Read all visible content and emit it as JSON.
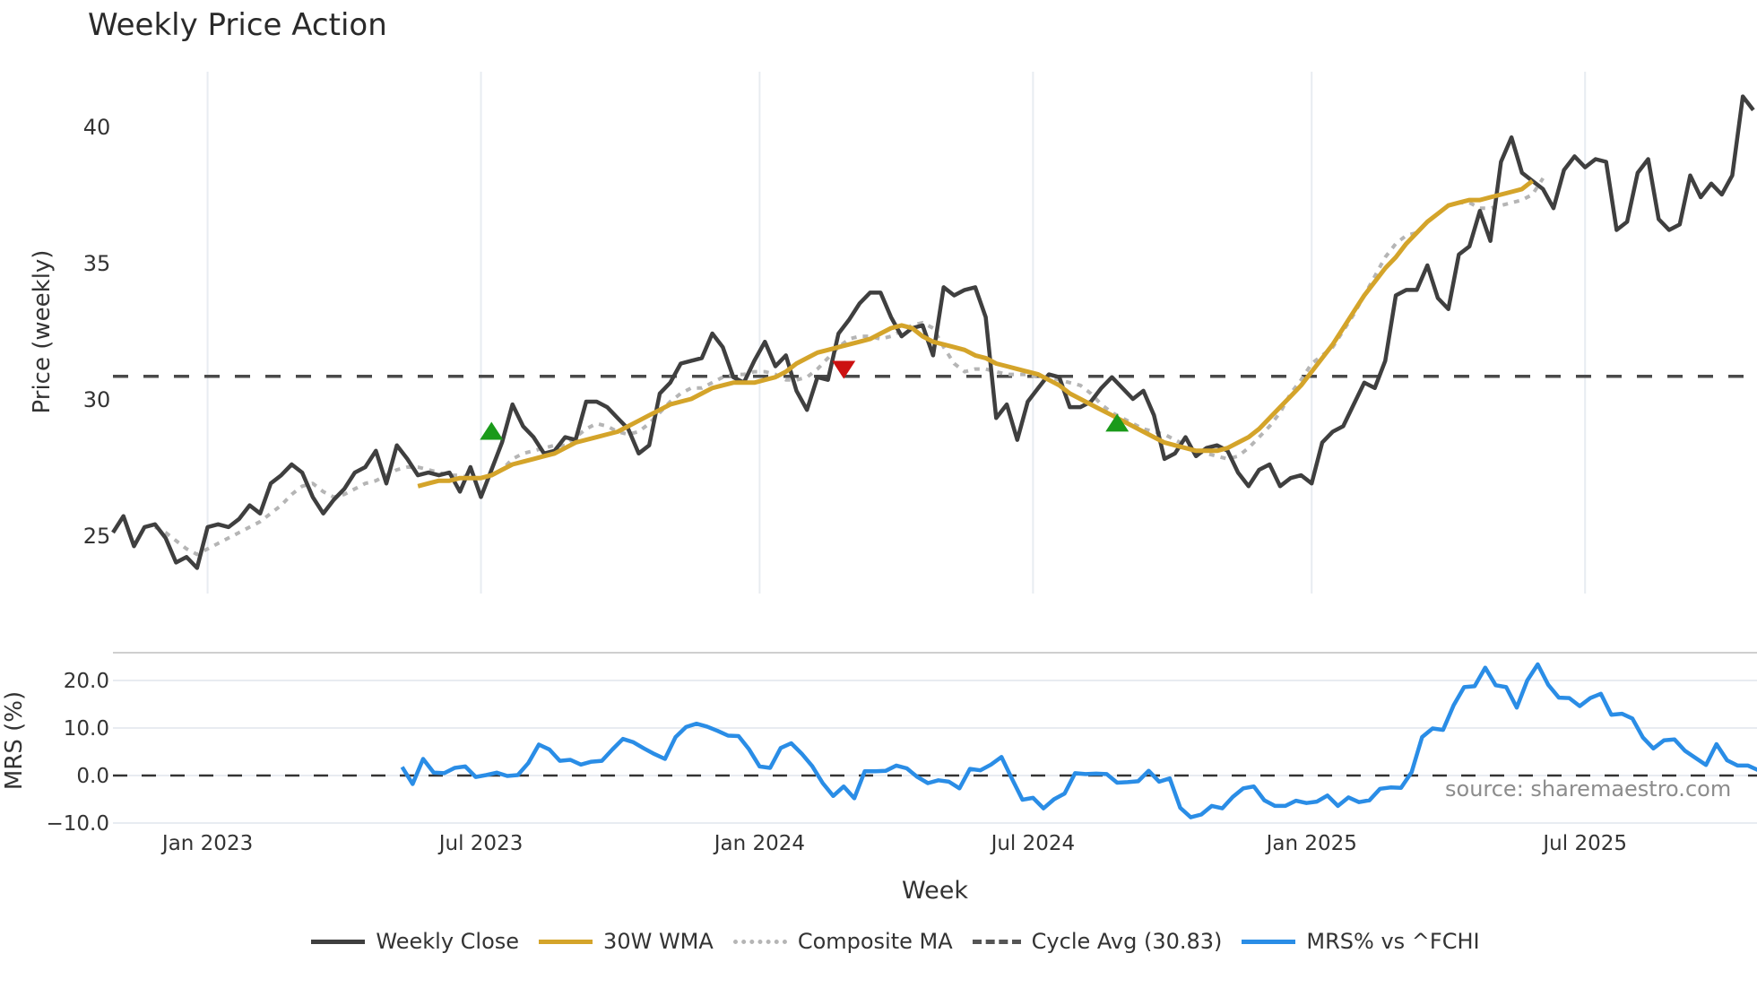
{
  "title": "Weekly Price Action",
  "source_text": "source: sharemaestro.com",
  "legend": [
    {
      "key": "close",
      "label": "Weekly Close",
      "color": "#3f3f3f"
    },
    {
      "key": "wma",
      "label": "30W WMA",
      "color": "#d4a42a"
    },
    {
      "key": "composite",
      "label": "Composite MA",
      "color": "#b5b5b5"
    },
    {
      "key": "cycle",
      "label": "Cycle Avg (30.83)",
      "color": "#555555"
    },
    {
      "key": "mrs",
      "label": "MRS% vs ^FCHI",
      "color": "#2a8de6"
    }
  ],
  "colors": {
    "close": "#3f3f3f",
    "wma": "#d4a42a",
    "composite": "#b5b5b5",
    "cycle": "#555555",
    "mrs": "#2a8de6",
    "buy_marker": "#1a9a1a",
    "sell_marker": "#cc1111",
    "grid": "#e8ecf1"
  },
  "chart_data": [
    {
      "type": "line",
      "title": "Weekly Price Action",
      "xlabel": "",
      "ylabel": "Price (weekly)",
      "ylim": [
        22.8,
        42.2
      ],
      "yticks": [
        25,
        30,
        35,
        40
      ],
      "xticks": [
        {
          "label": "Jan 2023",
          "week": 9
        },
        {
          "label": "Jul 2023",
          "week": 35
        },
        {
          "label": "Jan 2024",
          "week": 61.5
        },
        {
          "label": "Jul 2024",
          "week": 87.5
        },
        {
          "label": "Jan 2025",
          "week": 114
        },
        {
          "label": "Jul 2025",
          "week": 140
        }
      ],
      "grid": "vertical",
      "hline": {
        "label": "Cycle Avg",
        "value": 30.83
      },
      "series": [
        {
          "name": "Weekly Close",
          "start_week": 0,
          "values": [
            25.1,
            25.7,
            24.6,
            25.3,
            25.4,
            24.9,
            24.0,
            24.2,
            23.8,
            25.3,
            25.4,
            25.3,
            25.6,
            26.1,
            25.8,
            26.9,
            27.2,
            27.6,
            27.3,
            26.4,
            25.8,
            26.3,
            26.7,
            27.3,
            27.5,
            28.1,
            26.9,
            28.3,
            27.8,
            27.2,
            27.3,
            27.2,
            27.3,
            26.6,
            27.5,
            26.4,
            27.4,
            28.4,
            29.8,
            29.0,
            28.6,
            28.0,
            28.1,
            28.6,
            28.5,
            29.9,
            29.9,
            29.7,
            29.3,
            28.9,
            28.0,
            28.3,
            30.2,
            30.6,
            31.3,
            31.4,
            31.5,
            32.4,
            31.9,
            30.8,
            30.6,
            31.4,
            32.1,
            31.2,
            31.6,
            30.3,
            29.6,
            30.8,
            30.7,
            32.4,
            32.9,
            33.5,
            33.9,
            33.9,
            33.0,
            32.3,
            32.6,
            32.7,
            31.6,
            34.1,
            33.8,
            34.0,
            34.1,
            33.0,
            29.3,
            29.8,
            28.5,
            29.9,
            30.4,
            30.9,
            30.8,
            29.7,
            29.7,
            29.9,
            30.4,
            30.8,
            30.4,
            30.0,
            30.3,
            29.4,
            27.8,
            28.0,
            28.6,
            27.9,
            28.2,
            28.3,
            28.1,
            27.3,
            26.8,
            27.4,
            27.6,
            26.8,
            27.1,
            27.2,
            26.9,
            28.4,
            28.8,
            29.0,
            29.8,
            30.6,
            30.4,
            31.4,
            33.8,
            34.0,
            34.0,
            34.9,
            33.7,
            33.3,
            35.3,
            35.6,
            36.9,
            35.8,
            38.7,
            39.6,
            38.3,
            38.0,
            37.7,
            37.0,
            38.4,
            38.9,
            38.5,
            38.8,
            38.7,
            36.2,
            36.5,
            38.3,
            38.8,
            36.6,
            36.2,
            36.4,
            38.2,
            37.4,
            37.9,
            37.5,
            38.2,
            41.1,
            40.6
          ]
        },
        {
          "name": "30W WMA",
          "start_week": 29,
          "values": [
            26.8,
            26.9,
            27.0,
            27.0,
            27.1,
            27.1,
            27.1,
            27.2,
            27.4,
            27.6,
            27.7,
            27.8,
            27.9,
            28.0,
            28.2,
            28.4,
            28.5,
            28.6,
            28.7,
            28.8,
            29.0,
            29.2,
            29.4,
            29.6,
            29.8,
            29.9,
            30.0,
            30.2,
            30.4,
            30.5,
            30.6,
            30.6,
            30.6,
            30.7,
            30.8,
            31.0,
            31.3,
            31.5,
            31.7,
            31.8,
            31.9,
            32.0,
            32.1,
            32.2,
            32.4,
            32.6,
            32.7,
            32.6,
            32.3,
            32.1,
            32.0,
            31.9,
            31.8,
            31.6,
            31.5,
            31.3,
            31.2,
            31.1,
            31.0,
            30.9,
            30.7,
            30.5,
            30.2,
            30.0,
            29.8,
            29.6,
            29.4,
            29.2,
            29.0,
            28.8,
            28.6,
            28.4,
            28.3,
            28.2,
            28.1,
            28.1,
            28.1,
            28.2,
            28.4,
            28.6,
            28.9,
            29.3,
            29.7,
            30.1,
            30.5,
            31.0,
            31.5,
            32.0,
            32.6,
            33.2,
            33.8,
            34.3,
            34.8,
            35.2,
            35.7,
            36.1,
            36.5,
            36.8,
            37.1,
            37.2,
            37.3,
            37.3,
            37.4,
            37.5,
            37.6,
            37.7,
            38.0
          ]
        },
        {
          "name": "Composite MA",
          "start_week": 4,
          "values": [
            25.3,
            25.1,
            24.8,
            24.5,
            24.3,
            24.5,
            24.7,
            24.9,
            25.1,
            25.3,
            25.5,
            25.8,
            26.1,
            26.5,
            26.8,
            26.9,
            26.6,
            26.4,
            26.5,
            26.7,
            26.9,
            27.0,
            27.2,
            27.4,
            27.5,
            27.5,
            27.4,
            27.3,
            27.2,
            27.2,
            27.1,
            27.1,
            27.2,
            27.4,
            27.8,
            28.0,
            28.1,
            28.2,
            28.3,
            28.3,
            28.6,
            28.9,
            29.1,
            29.0,
            28.8,
            28.7,
            28.8,
            29.1,
            29.5,
            29.9,
            30.2,
            30.4,
            30.4,
            30.6,
            30.8,
            30.9,
            30.9,
            31.0,
            31.0,
            30.9,
            30.7,
            30.7,
            30.8,
            31.1,
            31.5,
            31.9,
            32.2,
            32.3,
            32.3,
            32.2,
            32.3,
            32.5,
            32.7,
            32.8,
            32.6,
            31.9,
            31.3,
            31.0,
            31.1,
            31.1,
            31.0,
            30.9,
            30.9,
            30.9,
            30.8,
            30.8,
            30.7,
            30.6,
            30.5,
            30.2,
            29.8,
            29.5,
            29.3,
            29.1,
            28.9,
            28.8,
            28.7,
            28.5,
            28.3,
            28.1,
            28.0,
            27.9,
            27.8,
            27.9,
            28.2,
            28.6,
            29.0,
            29.5,
            30.2,
            30.7,
            31.3,
            31.6,
            31.9,
            32.5,
            33.1,
            33.8,
            34.5,
            35.2,
            35.7,
            36.0,
            36.1,
            36.5,
            36.8,
            37.1,
            37.2,
            37.2,
            37.0,
            37.0,
            37.1,
            37.2,
            37.3,
            37.5,
            38.1
          ]
        }
      ],
      "annotations": [
        {
          "type": "buy",
          "shape": "triangle-up",
          "week": 36,
          "price": 28.8
        },
        {
          "type": "sell",
          "shape": "triangle-down",
          "week": 69.5,
          "price": 31.1
        },
        {
          "type": "buy",
          "shape": "triangle-up",
          "week": 95.5,
          "price": 29.1
        }
      ]
    },
    {
      "type": "line",
      "title": "",
      "xlabel": "Week",
      "ylabel": "MRS (%)",
      "ylim": [
        -11,
        25.5
      ],
      "yticks": [
        -10.0,
        0.0,
        10.0,
        20.0
      ],
      "grid": "horizontal",
      "hline": {
        "label": "zero",
        "value": 0.0
      },
      "series": [
        {
          "name": "MRS% vs ^FCHI",
          "start_week": 27.5,
          "values": [
            1.8,
            -1.8,
            3.5,
            0.6,
            0.5,
            1.6,
            1.9,
            -0.3,
            0.1,
            0.6,
            -0.1,
            0.1,
            2.6,
            6.5,
            5.5,
            3.1,
            3.3,
            2.3,
            2.9,
            3.1,
            5.5,
            7.7,
            7.0,
            5.7,
            4.5,
            3.5,
            8.1,
            10.2,
            10.9,
            10.3,
            9.4,
            8.4,
            8.3,
            5.5,
            1.9,
            1.6,
            5.8,
            6.8,
            4.6,
            2.0,
            -1.6,
            -4.3,
            -2.3,
            -4.8,
            0.9,
            0.9,
            1.0,
            2.1,
            1.5,
            -0.3,
            -1.6,
            -1.0,
            -1.3,
            -2.7,
            1.4,
            1.1,
            2.3,
            3.9,
            -0.7,
            -5.1,
            -4.7,
            -6.9,
            -5.0,
            -3.8,
            0.5,
            0.3,
            0.4,
            0.3,
            -1.5,
            -1.4,
            -1.2,
            1.0,
            -1.3,
            -0.6,
            -6.8,
            -8.8,
            -8.2,
            -6.4,
            -6.9,
            -4.5,
            -2.7,
            -2.3,
            -5.2,
            -6.4,
            -6.4,
            -5.3,
            -5.8,
            -5.5,
            -4.2,
            -6.4,
            -4.6,
            -5.6,
            -5.2,
            -2.8,
            -2.5,
            -2.6,
            0.7,
            8.1,
            9.9,
            9.6,
            14.8,
            18.6,
            18.8,
            22.7,
            19.0,
            18.6,
            14.3,
            20.0,
            23.4,
            19.1,
            16.4,
            16.3,
            14.6,
            16.3,
            17.2,
            12.8,
            13.0,
            12.0,
            8.0,
            5.7,
            7.4,
            7.6,
            5.2,
            3.7,
            2.2,
            6.6,
            3.2,
            2.1,
            2.1,
            1.1,
            7.6,
            5.2
          ]
        }
      ]
    }
  ],
  "price_panel": {
    "ylabel": "Price (weekly)",
    "ytick_labels": [
      "25",
      "30",
      "35",
      "40"
    ]
  },
  "mrs_panel": {
    "ylabel": "MRS (%)",
    "ytick_labels": [
      "−10.0",
      "0.0",
      "10.0",
      "20.0"
    ]
  },
  "x_axis": {
    "label": "Week",
    "tick_labels": [
      "Jan 2023",
      "Jul 2023",
      "Jan 2024",
      "Jul 2024",
      "Jan 2025",
      "Jul 2025"
    ]
  }
}
